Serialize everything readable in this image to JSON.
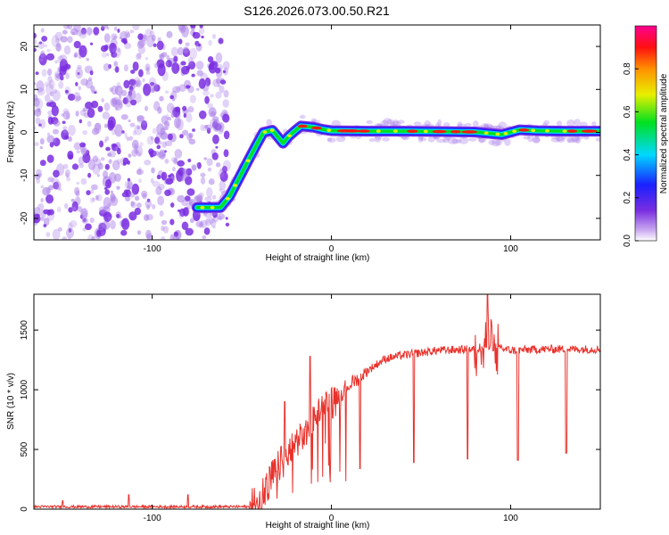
{
  "figure_title": "S126.2026.073.00.50.R21",
  "colors": {
    "snr_line": "#e8322c",
    "scatter": "#a97de8",
    "scatter_dark": "#7a2ee0"
  },
  "chart_data": [
    {
      "type": "heatmap",
      "title": "S126.2026.073.00.50.R21",
      "xlabel": "Height of straight line (km)",
      "ylabel": "Frequency (Hz)",
      "xlim": [
        -166,
        150
      ],
      "ylim": [
        -25,
        25
      ],
      "xticks": [
        -100,
        0,
        100
      ],
      "yticks": [
        -20,
        -10,
        0,
        10,
        20
      ],
      "colormap": "rainbow (white-violet-blue-cyan-green-yellow-red-magenta)",
      "colorbar": {
        "label": "Normalized spectral amplitude",
        "range": [
          0.0,
          1.0
        ],
        "ticks": [
          0.0,
          0.2,
          0.4,
          0.6,
          0.8
        ]
      },
      "noise_region_x": [
        -166,
        -58
      ],
      "ridge": {
        "x": [
          -75,
          -62,
          -57,
          -52,
          -47,
          -42,
          -38,
          -33,
          -30,
          -27,
          -24,
          -20,
          -17,
          -10,
          -5,
          0,
          20,
          40,
          60,
          80,
          95,
          105,
          115,
          130,
          150
        ],
        "frequency_hz": [
          -17.5,
          -17.5,
          -15,
          -11,
          -7,
          -3,
          0,
          0.5,
          -1,
          -2.5,
          -1,
          0.5,
          1.5,
          1.2,
          0.7,
          0.4,
          0.3,
          0.3,
          0.2,
          0.1,
          -0.5,
          0.6,
          0.4,
          0.3,
          0.3
        ]
      }
    },
    {
      "type": "line",
      "xlabel": "Height of straight line (km)",
      "ylabel": "SNR (10 * v/v)",
      "xlim": [
        -166,
        150
      ],
      "ylim": [
        0,
        1800
      ],
      "xticks": [
        -100,
        0,
        100
      ],
      "yticks": [
        0,
        500,
        1000,
        1500
      ],
      "baseline_x": [
        -166,
        -46
      ],
      "baseline_level": 20,
      "baseline_spikes": [
        {
          "x": -150,
          "y": 70
        },
        {
          "x": -113,
          "y": 120
        },
        {
          "x": -80,
          "y": 120
        }
      ],
      "trend": {
        "x": [
          -46,
          -40,
          -35,
          -30,
          -25,
          -20,
          -15,
          -10,
          -5,
          0,
          5,
          10,
          15,
          20,
          30,
          40,
          50,
          60,
          80,
          90,
          100,
          120,
          150
        ],
        "y": [
          20,
          60,
          200,
          350,
          430,
          560,
          620,
          760,
          880,
          930,
          970,
          1050,
          1090,
          1160,
          1260,
          1290,
          1310,
          1330,
          1340,
          1360,
          1330,
          1340,
          1340
        ]
      },
      "dips": [
        {
          "x": 16,
          "y": 340
        },
        {
          "x": 46,
          "y": 390
        },
        {
          "x": 76,
          "y": 420
        },
        {
          "x": 104,
          "y": 410
        },
        {
          "x": 131,
          "y": 470
        }
      ],
      "peaks": [
        {
          "x": -26,
          "y": 900
        },
        {
          "x": -12,
          "y": 1280
        },
        {
          "x": 87,
          "y": 1800
        }
      ]
    }
  ]
}
